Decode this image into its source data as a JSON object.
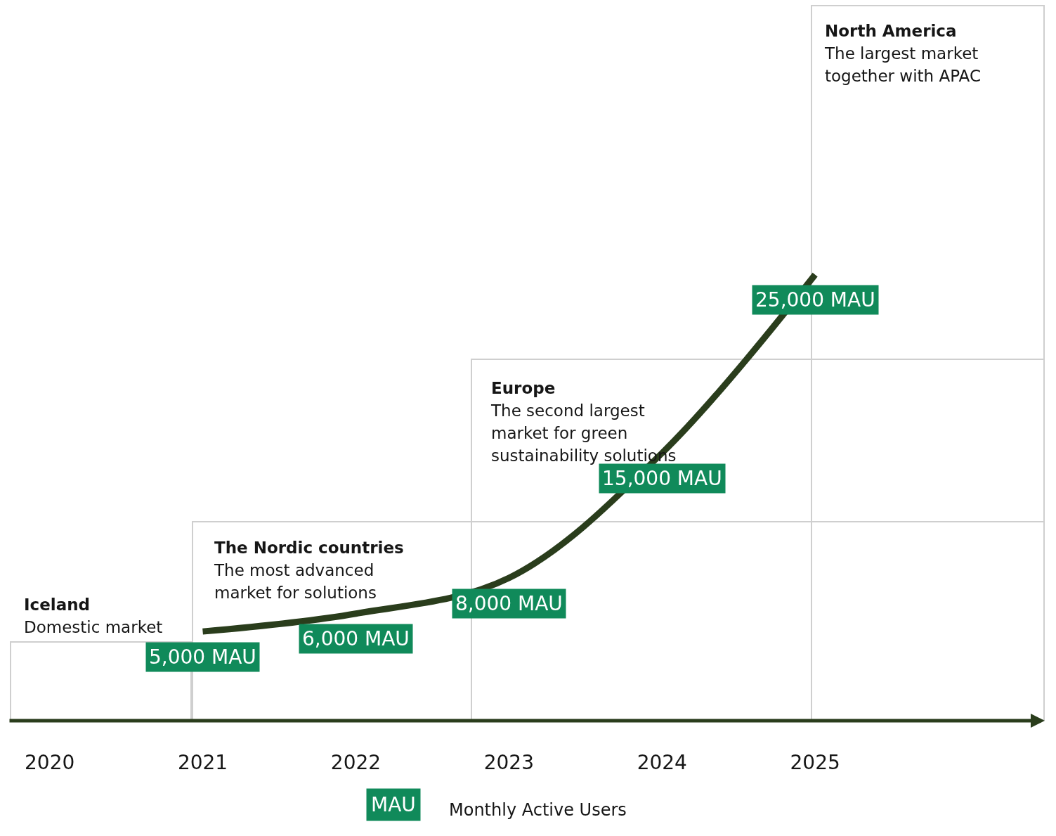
{
  "chart_data": {
    "type": "line",
    "categories": [
      "2020",
      "2021",
      "2022",
      "2023",
      "2024",
      "2025"
    ],
    "series": [
      {
        "color": "#2a3d1c",
        "values": [
          null,
          5000,
          6000,
          8000,
          15000,
          25000
        ],
        "value_labels": [
          null,
          "5,000 MAU",
          "6,000 MAU",
          "8,000 MAU",
          "15,000 MAU",
          "25,000 MAU"
        ]
      }
    ],
    "grid": false,
    "tick_labels": "x",
    "annotations": [
      "Iceland\nDomestic market",
      "The Nordic countries\nThe most advanced market for solutions",
      "Europe\nThe second largest market for green sustainability solutions",
      "North America\nThe largest market together with APAC",
      "MAU",
      "Monthly Active Users"
    ]
  }
}
